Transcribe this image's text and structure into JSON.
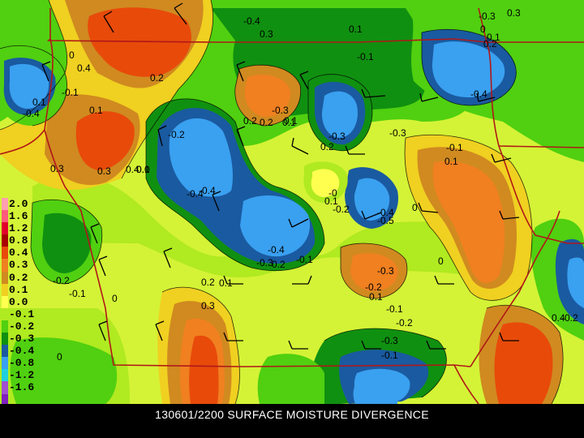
{
  "caption": "130601/2200 SURFACE MOISTURE DIVERGENCE",
  "legend": [
    {
      "label": "2.0",
      "color": "#ff9fb0"
    },
    {
      "label": "1.6",
      "color": "#ff5a7a"
    },
    {
      "label": "1.2",
      "color": "#e0002a"
    },
    {
      "label": "0.8",
      "color": "#a80000"
    },
    {
      "label": "0.4",
      "color": "#e84a0a"
    },
    {
      "label": "0.3",
      "color": "#f08020"
    },
    {
      "label": "0.2",
      "color": "#d08a20"
    },
    {
      "label": "0.1",
      "color": "#f0d020"
    },
    {
      "label": "0.0",
      "color": "#ffff50"
    },
    {
      "label": "-0.1",
      "color": "#b0ea20"
    },
    {
      "label": "-0.2",
      "color": "#50d010"
    },
    {
      "label": "-0.3",
      "color": "#109010"
    },
    {
      "label": "-0.4",
      "color": "#1a5aa0"
    },
    {
      "label": "-0.8",
      "color": "#3aa0f0"
    },
    {
      "label": "-1.2",
      "color": "#20d0e0"
    },
    {
      "label": "-1.6",
      "color": "#a050d0"
    },
    {
      "label": "",
      "color": "#8020c0"
    }
  ],
  "contour_labels": [
    "-0.4",
    "0.3",
    "0.1",
    "-0.1",
    "0",
    "0.4",
    "0.1",
    "-0.4",
    "0.3",
    "-0.1",
    "0.1",
    "0.2",
    "-0.3",
    "0.2",
    "0.1",
    "-0.4",
    "-0.3",
    "0",
    "0.1",
    "0.2",
    "0.3",
    "0.3",
    "0.4",
    "0.0",
    "0.1",
    "-0.4",
    "-0",
    "0.1",
    "-0.2",
    "-0.4",
    "-0.5",
    "0",
    "-0.4",
    "-0.3",
    "0.2",
    "-0.1",
    "0",
    "-0.3",
    "-0.2",
    "0.1",
    "-0.2",
    "-0.1",
    "0.2",
    "0.1",
    "0.3",
    "0",
    "-0.1",
    "-0.2",
    "-0.3",
    "-0.1",
    "0",
    "0.4",
    "-0.2",
    "-0.3",
    "-0.1",
    "0.1",
    "0.2",
    "0.1",
    "0.2",
    "-0.3",
    "-0.2",
    "-0.4"
  ],
  "colors": {
    "border_line": "#b01818"
  }
}
